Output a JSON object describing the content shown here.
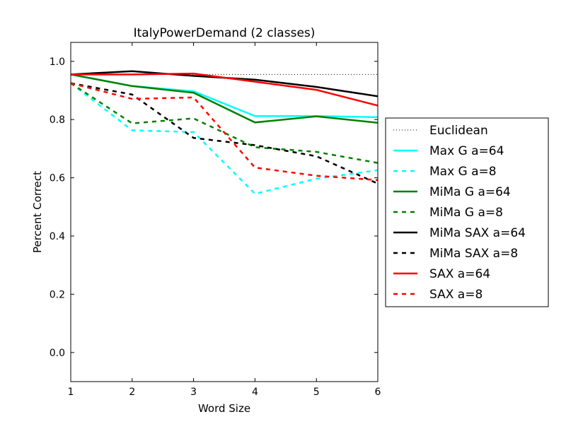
{
  "chart_data": {
    "type": "line",
    "title": "ItalyPowerDemand (2 classes)",
    "xlabel": "Word Size",
    "ylabel": "Percent Correct",
    "xlim": [
      1,
      6
    ],
    "ylim": [
      -0.1,
      1.065
    ],
    "x": [
      1,
      2,
      3,
      4,
      5,
      6
    ],
    "xticks": [
      "1",
      "2",
      "3",
      "4",
      "5",
      "6"
    ],
    "yticks": [
      "0.0",
      "0.2",
      "0.4",
      "0.6",
      "0.8",
      "1.0"
    ],
    "grid": false,
    "legend_position": "right outside",
    "series": [
      {
        "name": "Euclidean",
        "color": "#000000",
        "style": "dotted",
        "values": [
          0.955,
          0.955,
          0.955,
          0.955,
          0.955,
          0.955
        ]
      },
      {
        "name": "Max G a=64",
        "color": "#00ffff",
        "style": "solid",
        "values": [
          0.955,
          0.915,
          0.897,
          0.812,
          0.812,
          0.808
        ]
      },
      {
        "name": "Max G a=8",
        "color": "#00ffff",
        "style": "dashed",
        "values": [
          0.925,
          0.763,
          0.757,
          0.545,
          0.597,
          0.626
        ]
      },
      {
        "name": "MiMa G a=64",
        "color": "#008000",
        "style": "solid",
        "values": [
          0.955,
          0.915,
          0.892,
          0.79,
          0.811,
          0.789
        ]
      },
      {
        "name": "MiMa G a=8",
        "color": "#008000",
        "style": "dashed",
        "values": [
          0.925,
          0.787,
          0.804,
          0.705,
          0.689,
          0.651
        ]
      },
      {
        "name": "MiMa SAX a=64",
        "color": "#000000",
        "style": "solid",
        "values": [
          0.955,
          0.966,
          0.95,
          0.937,
          0.912,
          0.88
        ]
      },
      {
        "name": "MiMa SAX a=8",
        "color": "#000000",
        "style": "dashed",
        "values": [
          0.925,
          0.886,
          0.737,
          0.712,
          0.674,
          0.58
        ]
      },
      {
        "name": "SAX a=64",
        "color": "#ff0000",
        "style": "solid",
        "values": [
          0.955,
          0.955,
          0.958,
          0.93,
          0.902,
          0.848
        ]
      },
      {
        "name": "SAX a=8",
        "color": "#ff0000",
        "style": "dashed",
        "values": [
          0.925,
          0.871,
          0.876,
          0.635,
          0.607,
          0.592
        ]
      }
    ]
  }
}
